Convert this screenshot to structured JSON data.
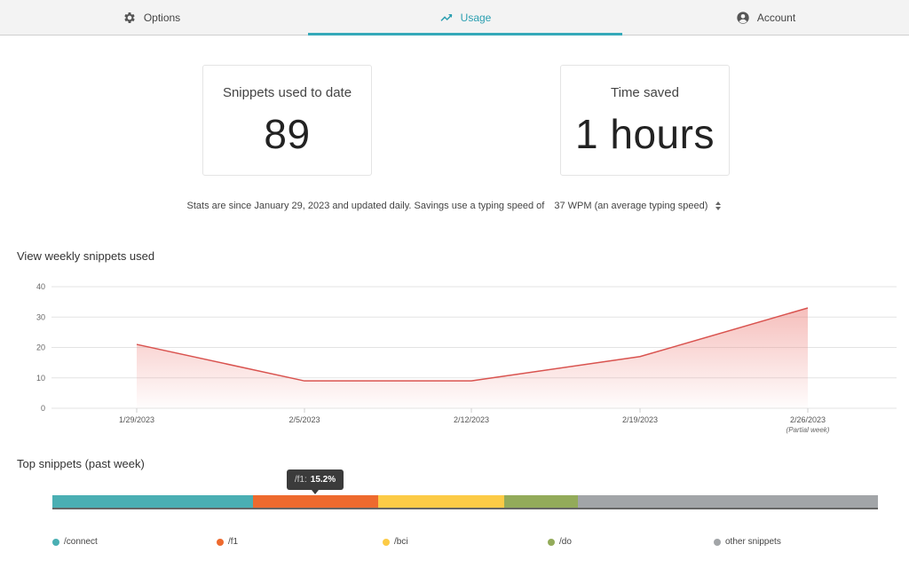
{
  "tabs": {
    "options": {
      "label": "Options",
      "icon": "gear-icon"
    },
    "usage": {
      "label": "Usage",
      "icon": "trend-icon"
    },
    "account": {
      "label": "Account",
      "icon": "account-icon"
    }
  },
  "colors": {
    "accent": "#35a9b9",
    "line": "#d9534f",
    "fill": "#f2a6a2"
  },
  "cards": {
    "snippets": {
      "label": "Snippets used to date",
      "value": "89"
    },
    "time": {
      "label": "Time saved",
      "value": "1 hours"
    }
  },
  "stats": {
    "text": "Stats are since January 29, 2023 and updated daily. Savings use a typing speed of",
    "wpm": "37 WPM (an average typing speed)"
  },
  "sections": {
    "weekly_title": "View weekly snippets used",
    "top_title": "Top snippets (past week)"
  },
  "chart_data": {
    "type": "area",
    "title": "View weekly snippets used",
    "x": [
      "1/29/2023",
      "2/5/2023",
      "2/12/2023",
      "2/19/2023",
      "2/26/2023"
    ],
    "x_notes": [
      "",
      "",
      "",
      "",
      "(Partial week)"
    ],
    "values": [
      21,
      9,
      9,
      17,
      33
    ],
    "ylim": [
      0,
      40
    ],
    "yticks": [
      "40",
      "30",
      "20",
      "10",
      "0"
    ],
    "grid": true
  },
  "top_snippets": {
    "items": [
      {
        "name": "/connect",
        "share": 0.243,
        "color": "#4aafb3"
      },
      {
        "name": "/f1",
        "share": 0.152,
        "color": "#ee6a2e"
      },
      {
        "name": "/bci",
        "share": 0.152,
        "color": "#fccb46"
      },
      {
        "name": "/do",
        "share": 0.09,
        "color": "#93ab5a"
      },
      {
        "name": "other snippets",
        "share": 0.363,
        "color": "#a2a5a8"
      }
    ],
    "tooltip": {
      "name": "/f1:",
      "value": "15.2%"
    }
  }
}
